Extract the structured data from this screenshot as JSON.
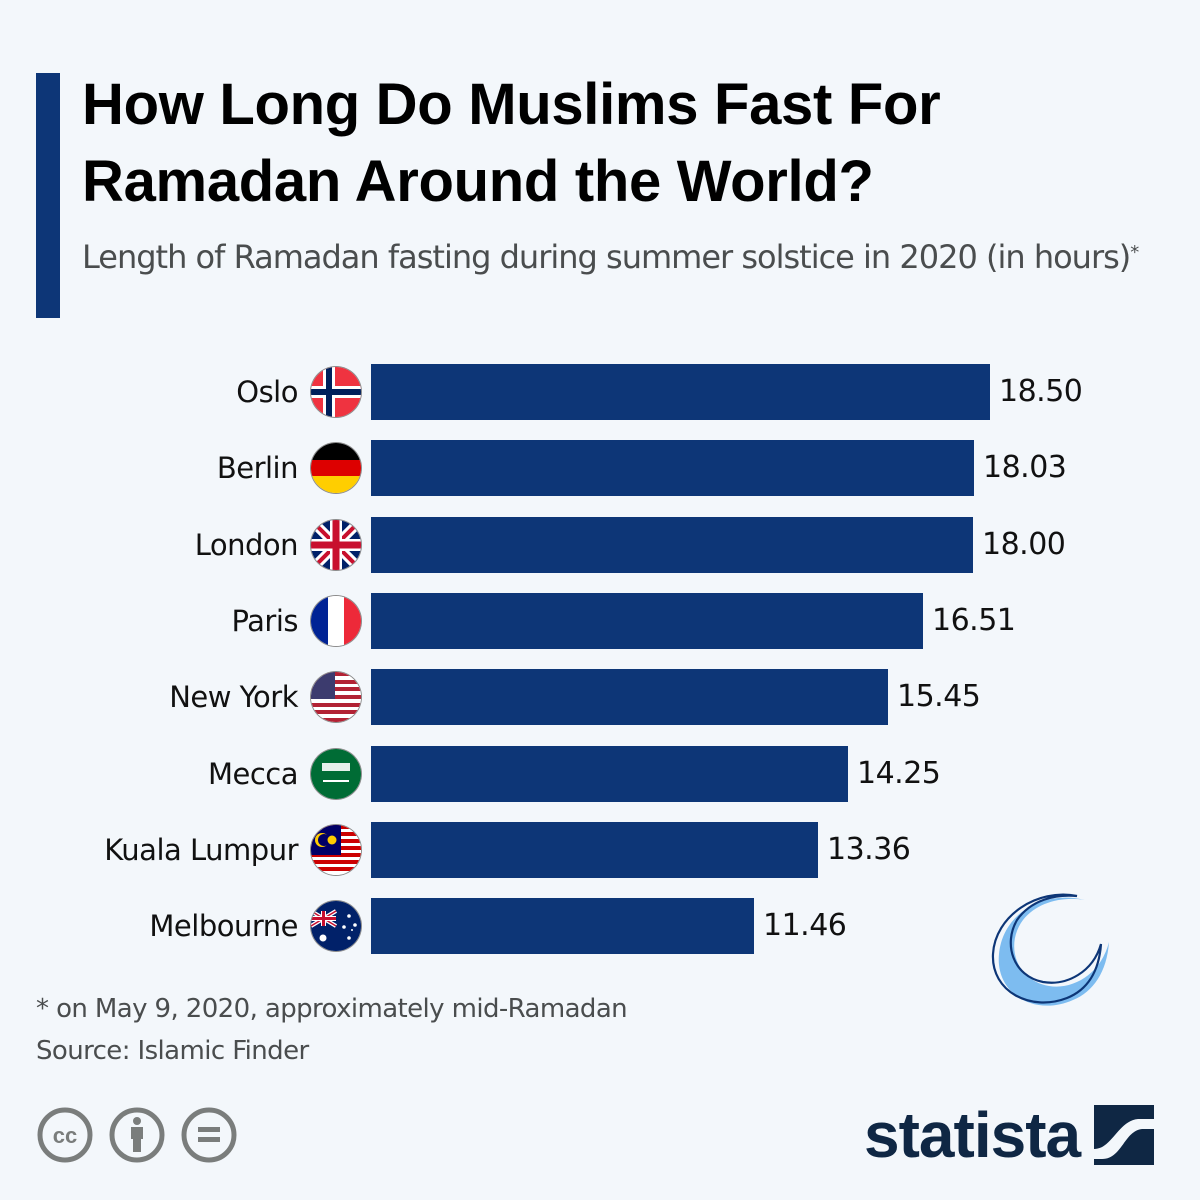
{
  "header": {
    "title_line1": "How Long Do Muslims Fast For",
    "title_line2": "Ramadan Around the World?",
    "subtitle": "Length of Ramadan fasting during summer solstice in 2020 (in hours)",
    "subtitle_marker": "*"
  },
  "colors": {
    "background": "#f3f7fb",
    "bar": "#0d3677",
    "accent": "#0d3677",
    "moon_fill": "#7dbcf0",
    "logo": "#0f2744"
  },
  "rows": [
    {
      "label": "Oslo",
      "flag": "norway-flag",
      "value": "18.50"
    },
    {
      "label": "Berlin",
      "flag": "germany-flag",
      "value": "18.03"
    },
    {
      "label": "London",
      "flag": "uk-flag",
      "value": "18.00"
    },
    {
      "label": "Paris",
      "flag": "france-flag",
      "value": "16.51"
    },
    {
      "label": "New York",
      "flag": "usa-flag",
      "value": "15.45"
    },
    {
      "label": "Mecca",
      "flag": "saudi-arabia-flag",
      "value": "14.25"
    },
    {
      "label": "Kuala Lumpur",
      "flag": "malaysia-flag",
      "value": "13.36"
    },
    {
      "label": "Melbourne",
      "flag": "australia-flag",
      "value": "11.46"
    }
  ],
  "footer": {
    "note": "* on May 9, 2020, approximately mid-Ramadan",
    "source": "Source: Islamic Finder",
    "license_icons": [
      "cc-icon",
      "attribution-icon",
      "no-derivatives-icon"
    ],
    "brand": "statista"
  },
  "chart_data": {
    "type": "bar",
    "orientation": "horizontal",
    "title": "How Long Do Muslims Fast For Ramadan Around the World?",
    "subtitle": "Length of Ramadan fasting during summer solstice in 2020 (in hours)*",
    "categories": [
      "Oslo",
      "Berlin",
      "London",
      "Paris",
      "New York",
      "Mecca",
      "Kuala Lumpur",
      "Melbourne"
    ],
    "values": [
      18.5,
      18.03,
      18.0,
      16.51,
      15.45,
      14.25,
      13.36,
      11.46
    ],
    "xlabel": "",
    "ylabel": "",
    "unit": "hours",
    "grid": false,
    "legend": null,
    "data_labels": true,
    "annotations": [
      "* on May 9, 2020, approximately mid-Ramadan"
    ],
    "source": "Islamic Finder"
  }
}
